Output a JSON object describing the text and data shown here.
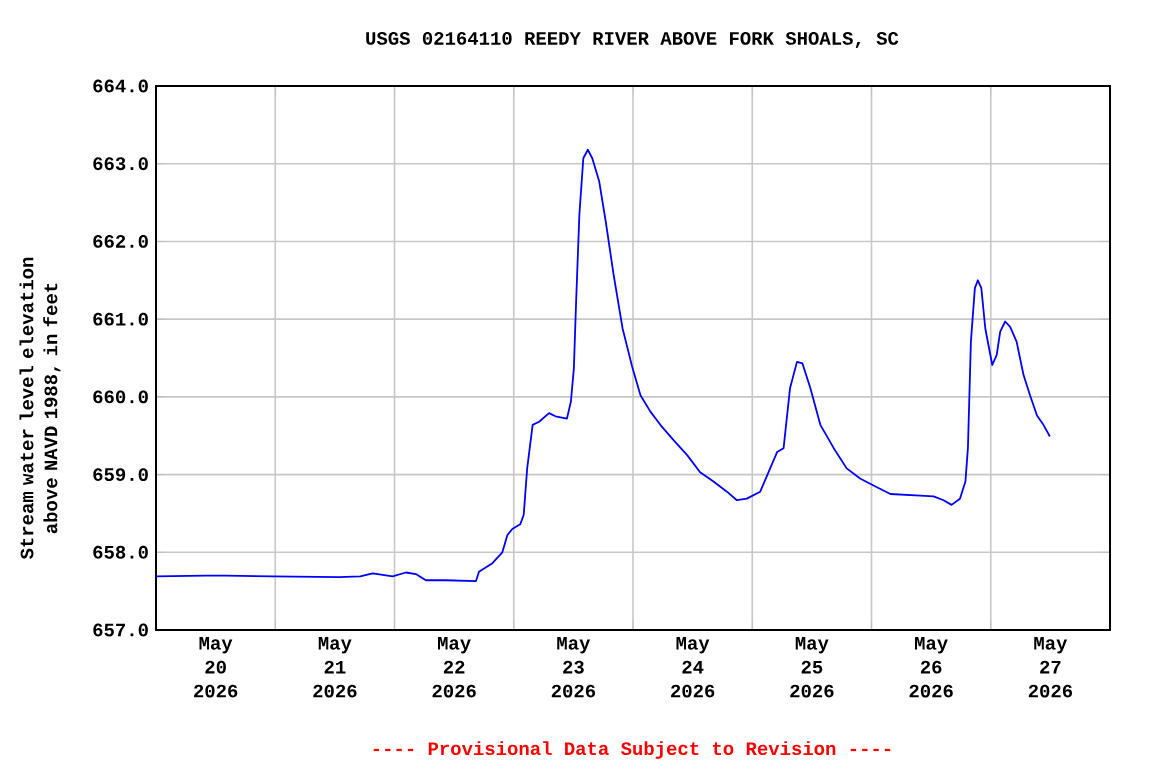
{
  "chart_data": {
    "type": "line",
    "title": "USGS 02164110 REEDY RIVER ABOVE FORK SHOALS, SC",
    "ylabel": "Stream water level elevation above NAVD 1988, in feet",
    "annotations": [
      "---- Provisional Data Subject to Revision ----"
    ],
    "x": [
      "2026-05-20T00:00",
      "2026-05-20T10:00",
      "2026-05-20T14:00",
      "2026-05-20T23:30",
      "2026-05-21T12:54",
      "2026-05-21T17:06",
      "2026-05-21T19:36",
      "2026-05-21T23:36",
      "2026-05-22T02:18",
      "2026-05-22T04:18",
      "2026-05-22T06:18",
      "2026-05-22T10:18",
      "2026-05-22T16:24",
      "2026-05-22T17:00",
      "2026-05-22T19:42",
      "2026-05-22T21:42",
      "2026-05-22T22:42",
      "2026-05-22T23:42",
      "2026-05-23T01:18",
      "2026-05-23T02:00",
      "2026-05-23T02:42",
      "2026-05-23T03:48",
      "2026-05-23T05:06",
      "2026-05-23T07:06",
      "2026-05-23T08:24",
      "2026-05-23T10:42",
      "2026-05-23T11:30",
      "2026-05-23T12:06",
      "2026-05-23T12:30",
      "2026-05-23T13:12",
      "2026-05-23T14:00",
      "2026-05-23T14:54",
      "2026-05-23T15:48",
      "2026-05-23T17:12",
      "2026-05-23T18:30",
      "2026-05-23T20:06",
      "2026-05-23T21:54",
      "2026-05-23T23:54",
      "2026-05-24T01:30",
      "2026-05-24T03:30",
      "2026-05-24T05:30",
      "2026-05-24T08:12",
      "2026-05-24T10:54",
      "2026-05-24T13:30",
      "2026-05-24T16:12",
      "2026-05-24T18:54",
      "2026-05-24T20:54",
      "2026-05-24T22:54",
      "2026-05-25T01:36",
      "2026-05-25T03:36",
      "2026-05-25T05:00",
      "2026-05-25T06:18",
      "2026-05-25T07:36",
      "2026-05-25T09:00",
      "2026-05-25T10:06",
      "2026-05-25T11:42",
      "2026-05-25T13:42",
      "2026-05-25T16:24",
      "2026-05-25T19:00",
      "2026-05-25T21:42",
      "2026-05-26T00:24",
      "2026-05-26T03:48",
      "2026-05-26T09:48",
      "2026-05-26T12:30",
      "2026-05-26T14:30",
      "2026-05-26T16:06",
      "2026-05-26T17:48",
      "2026-05-26T18:54",
      "2026-05-26T19:24",
      "2026-05-26T20:00",
      "2026-05-26T20:48",
      "2026-05-26T21:24",
      "2026-05-26T22:06",
      "2026-05-26T22:54",
      "2026-05-27T00:18",
      "2026-05-27T01:12",
      "2026-05-27T01:54",
      "2026-05-27T02:54",
      "2026-05-27T03:54",
      "2026-05-27T05:12",
      "2026-05-27T06:36",
      "2026-05-27T07:54",
      "2026-05-27T09:18",
      "2026-05-27T10:36",
      "2026-05-27T11:54"
    ],
    "series": [
      {
        "color": "#0000ff",
        "values": [
          657.69,
          657.7,
          657.7,
          657.69,
          657.68,
          657.69,
          657.73,
          657.69,
          657.74,
          657.72,
          657.64,
          657.64,
          657.63,
          657.75,
          657.86,
          658.0,
          658.22,
          658.3,
          658.36,
          658.48,
          659.08,
          659.64,
          659.68,
          659.79,
          659.75,
          659.72,
          659.94,
          660.37,
          661.14,
          662.34,
          663.07,
          663.18,
          663.07,
          662.77,
          662.26,
          661.57,
          660.88,
          660.37,
          660.02,
          659.81,
          659.64,
          659.44,
          659.25,
          659.03,
          658.91,
          658.78,
          658.67,
          658.69,
          658.78,
          659.08,
          659.29,
          659.34,
          660.11,
          660.45,
          660.43,
          660.11,
          659.64,
          659.34,
          659.08,
          658.95,
          658.86,
          658.75,
          658.73,
          658.72,
          658.67,
          658.61,
          658.69,
          658.91,
          659.34,
          660.71,
          661.4,
          661.5,
          661.4,
          660.88,
          660.41,
          660.54,
          660.84,
          660.97,
          660.9,
          660.71,
          660.28,
          660.02,
          659.76,
          659.64,
          659.49
        ]
      }
    ],
    "xlim": [
      "2026-05-20T00:00",
      "2026-05-28T00:00"
    ],
    "xticks": [
      {
        "value": "2026-05-20T00:00",
        "label": null
      },
      {
        "value": "2026-05-20T12:00",
        "label": "May 20 2026"
      },
      {
        "value": "2026-05-21T00:00",
        "label": null
      },
      {
        "value": "2026-05-21T12:00",
        "label": "May 21 2026"
      },
      {
        "value": "2026-05-22T00:00",
        "label": null
      },
      {
        "value": "2026-05-22T12:00",
        "label": "May 22 2026"
      },
      {
        "value": "2026-05-23T00:00",
        "label": null
      },
      {
        "value": "2026-05-23T12:00",
        "label": "May 23 2026"
      },
      {
        "value": "2026-05-24T00:00",
        "label": null
      },
      {
        "value": "2026-05-24T12:00",
        "label": "May 24 2026"
      },
      {
        "value": "2026-05-25T00:00",
        "label": null
      },
      {
        "value": "2026-05-25T12:00",
        "label": "May 25 2026"
      },
      {
        "value": "2026-05-26T00:00",
        "label": null
      },
      {
        "value": "2026-05-26T12:00",
        "label": "May 26 2026"
      },
      {
        "value": "2026-05-27T00:00",
        "label": null
      },
      {
        "value": "2026-05-27T12:00",
        "label": "May 27 2026"
      },
      {
        "value": "2026-05-28T00:00",
        "label": null
      }
    ],
    "ylim": [
      657,
      664
    ],
    "yticks": [
      {
        "value": 657,
        "label": "657.0"
      },
      {
        "value": 658,
        "label": "658.0"
      },
      {
        "value": 659,
        "label": "659.0"
      },
      {
        "value": 660,
        "label": "660.0"
      },
      {
        "value": 661,
        "label": "661.0"
      },
      {
        "value": 662,
        "label": "662.0"
      },
      {
        "value": 663,
        "label": "663.0"
      },
      {
        "value": 664,
        "label": "664.0"
      }
    ],
    "grid": true
  }
}
